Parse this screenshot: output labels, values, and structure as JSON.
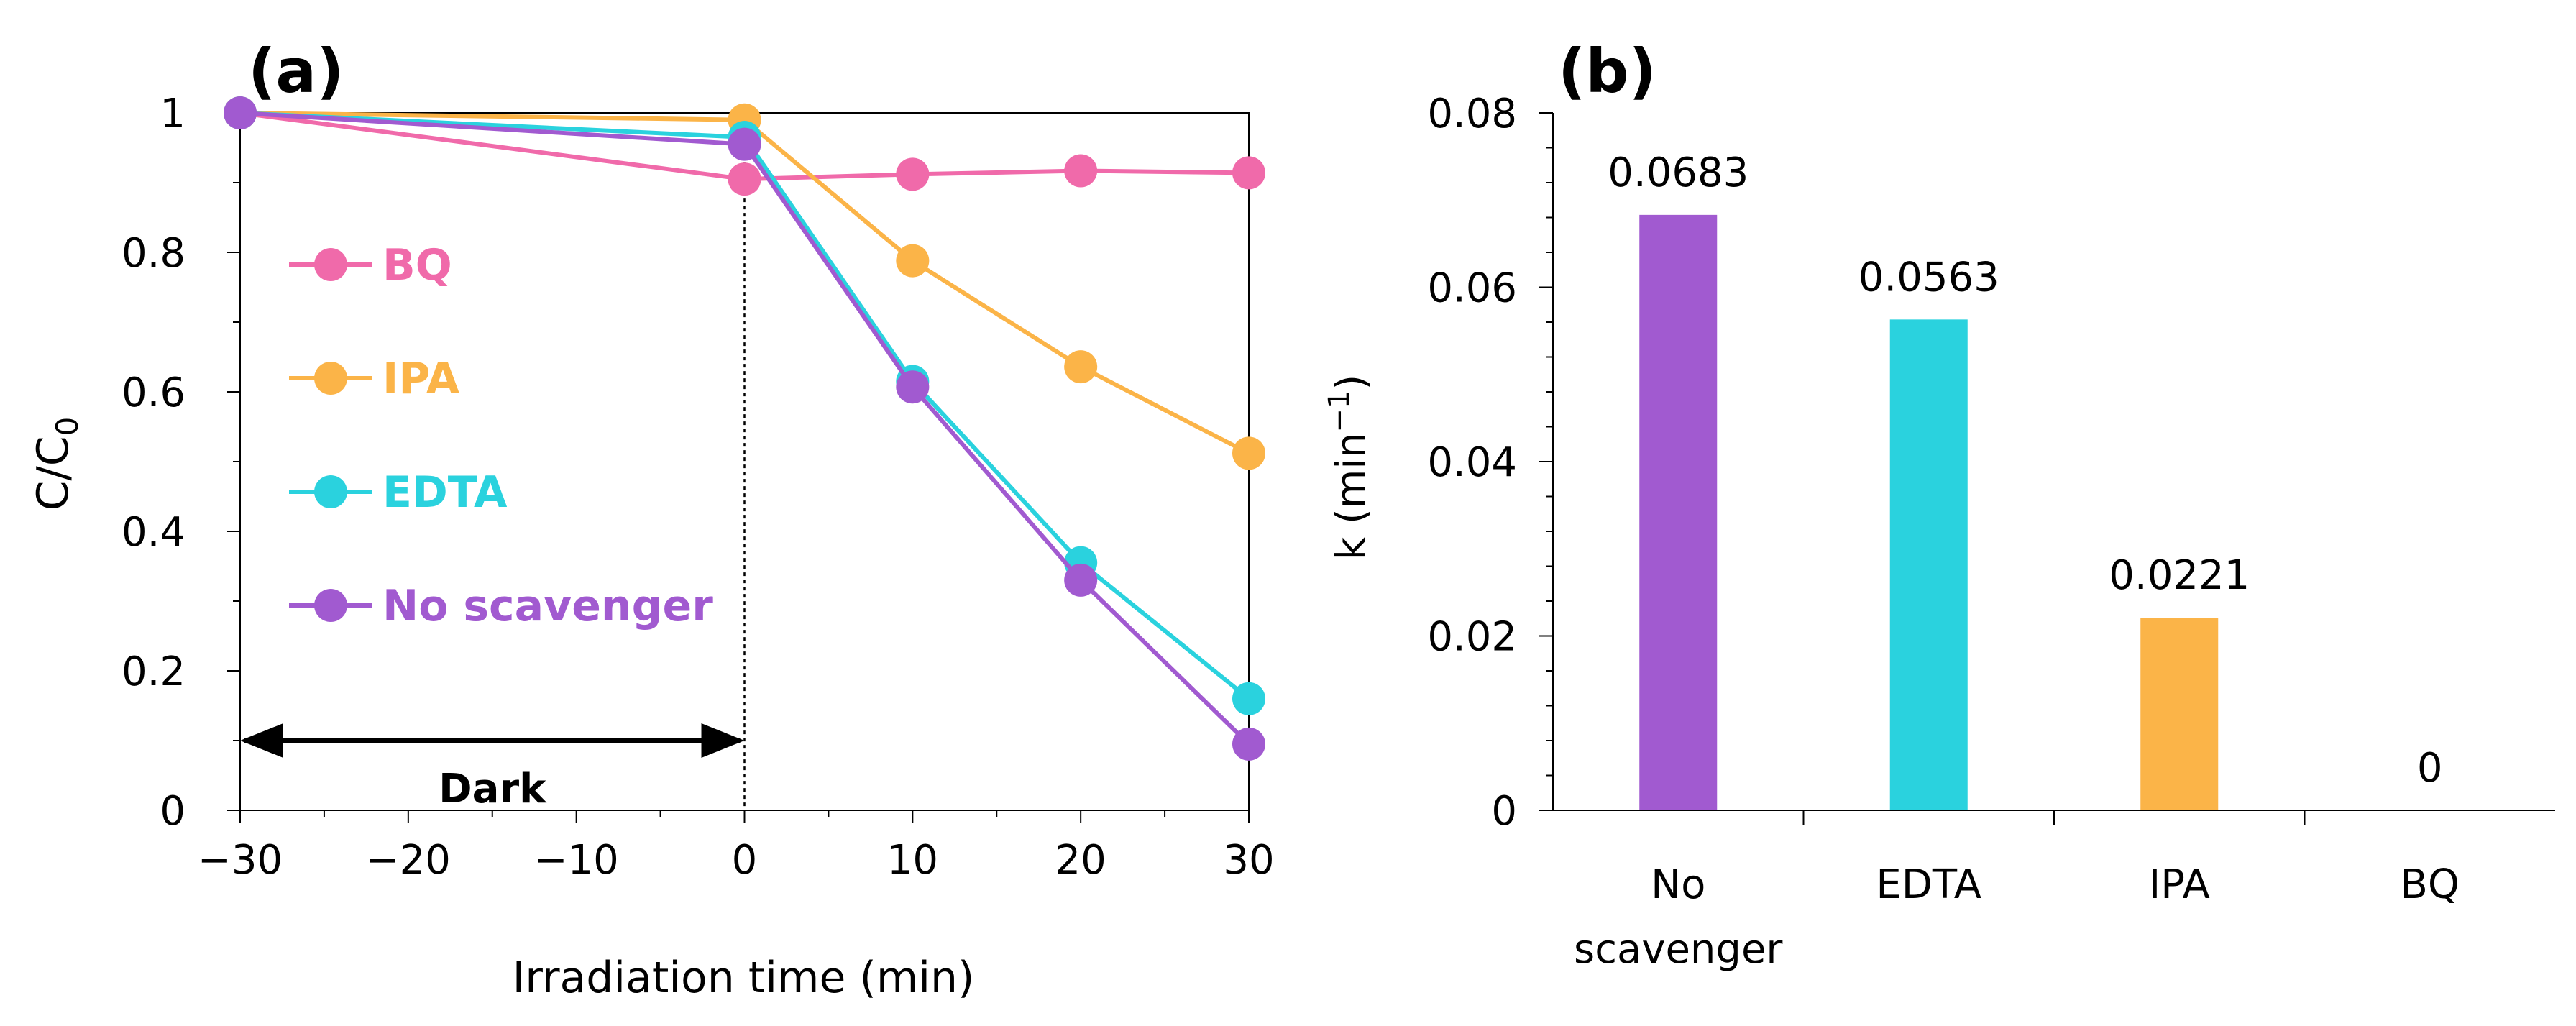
{
  "panel_a": {
    "label": "(a)",
    "ylabel_main": "C/C",
    "ylabel_sub": "0",
    "xlabel": "Irradiation time (min)",
    "dark_label": "Dark",
    "legend": [
      "BQ",
      "IPA",
      "EDTA",
      "No scavenger"
    ]
  },
  "panel_b": {
    "label": "(b)",
    "ylabel_main": "k (min",
    "ylabel_sup": "−1",
    "ylabel_close": ")",
    "category_lines": [
      [
        "No",
        "scavenger"
      ],
      [
        "EDTA"
      ],
      [
        "IPA"
      ],
      [
        "BQ"
      ]
    ]
  },
  "colors": {
    "BQ": "#f06aaa",
    "IPA": "#fbb448",
    "EDTA": "#2ad2de",
    "No scavenger": "#a15ad0"
  },
  "chart_data": [
    {
      "type": "line",
      "title": "(a)",
      "xlabel": "Irradiation time (min)",
      "ylabel": "C/C0",
      "x": [
        -30,
        0,
        10,
        20,
        30
      ],
      "xlim": [
        -30,
        30
      ],
      "ylim": [
        0,
        1
      ],
      "xticks": [
        -30,
        -20,
        -10,
        0,
        10,
        20,
        30
      ],
      "xtick_labels": [
        "−30",
        "−20",
        "−10",
        "0",
        "10",
        "20",
        "30"
      ],
      "yticks": [
        0,
        0.2,
        0.4,
        0.6,
        0.8,
        1
      ],
      "ytick_labels": [
        "0",
        "0.2",
        "0.4",
        "0.6",
        "0.8",
        "1"
      ],
      "series": [
        {
          "name": "BQ",
          "values": [
            1.0,
            0.905,
            0.912,
            0.917,
            0.914
          ]
        },
        {
          "name": "IPA",
          "values": [
            1.0,
            0.99,
            0.788,
            0.636,
            0.512
          ]
        },
        {
          "name": "EDTA",
          "values": [
            1.0,
            0.965,
            0.615,
            0.355,
            0.16
          ]
        },
        {
          "name": "No scavenger",
          "values": [
            1.0,
            0.955,
            0.607,
            0.33,
            0.095
          ]
        }
      ],
      "dark_region": [
        -30,
        0
      ]
    },
    {
      "type": "bar",
      "title": "(b)",
      "xlabel": "",
      "ylabel": "k (min−1)",
      "categories": [
        "No scavenger",
        "EDTA",
        "IPA",
        "BQ"
      ],
      "values": [
        0.0683,
        0.0563,
        0.0221,
        0
      ],
      "value_labels": [
        "0.0683",
        "0.0563",
        "0.0221",
        "0"
      ],
      "ylim": [
        0,
        0.08
      ],
      "yticks": [
        0,
        0.02,
        0.04,
        0.06,
        0.08
      ],
      "ytick_labels": [
        "0",
        "0.02",
        "0.04",
        "0.06",
        "0.08"
      ]
    }
  ]
}
